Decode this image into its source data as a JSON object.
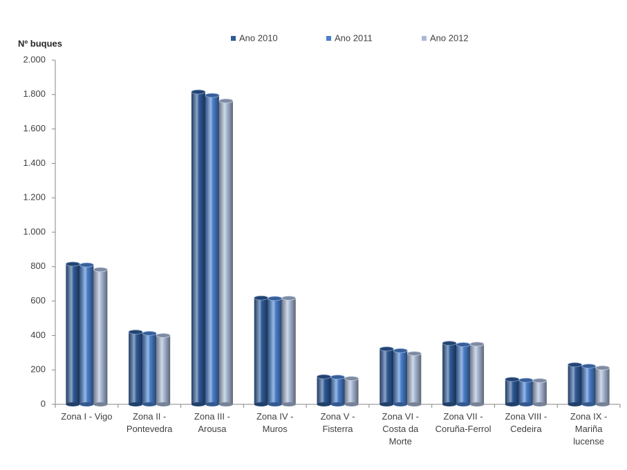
{
  "chart_data": {
    "type": "bar",
    "y_label": "Nº buques",
    "categories": [
      "Zona I - Vigo",
      "Zona II -\nPontevedra",
      "Zona III -\nArousa",
      "Zona IV -\nMuros",
      "Zona V -\nFisterra",
      "Zona VI -\nCosta da\nMorte",
      "Zona VII -\nCoruña-Ferrol",
      "Zona VIII -\nCedeira",
      "Zona IX -\nMariña\nlucense"
    ],
    "series": [
      {
        "name": "Ano 2010",
        "color": "#2f5b98",
        "values": [
          815,
          420,
          1815,
          618,
          160,
          322,
          355,
          145,
          230
        ]
      },
      {
        "name": "Ano 2011",
        "color": "#4a7fcc",
        "values": [
          810,
          412,
          1795,
          615,
          158,
          312,
          347,
          140,
          222
        ]
      },
      {
        "name": "Ano 2012",
        "color": "#a9b9d6",
        "values": [
          783,
          400,
          1763,
          617,
          150,
          295,
          350,
          138,
          212
        ]
      }
    ],
    "ylim": [
      0,
      2000
    ],
    "yticks": [
      0,
      200,
      400,
      600,
      800,
      {
        "value": 1000,
        "label": "1.000"
      },
      {
        "value": 1200,
        "label": "1.200"
      },
      {
        "value": 1400,
        "label": "1.400"
      },
      {
        "value": 1600,
        "label": "1.600"
      },
      {
        "value": 1800,
        "label": "1.800"
      },
      {
        "value": 2000,
        "label": "2.000"
      }
    ],
    "legend": "top",
    "grid": false
  }
}
